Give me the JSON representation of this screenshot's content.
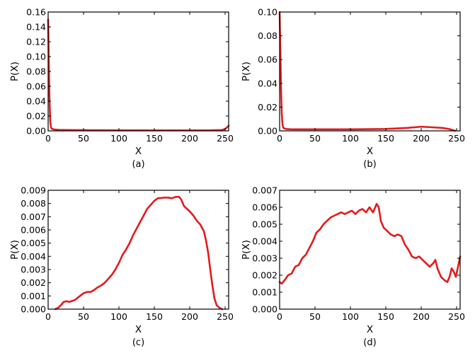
{
  "chart_data": [
    {
      "type": "line",
      "caption": "(a)",
      "xlabel": "X",
      "ylabel": "P(X)",
      "xlim": [
        0,
        255
      ],
      "ylim": [
        0,
        0.16
      ],
      "xticks": [
        0,
        50,
        100,
        150,
        200,
        250
      ],
      "xtick_labels": [
        "0",
        "50",
        "100",
        "150",
        "200",
        "250"
      ],
      "yticks": [
        0,
        0.02,
        0.04,
        0.06,
        0.08,
        0.1,
        0.12,
        0.14,
        0.16
      ],
      "ytick_labels": [
        "0.00",
        "0.02",
        "0.04",
        "0.06",
        "0.08",
        "0.10",
        "0.12",
        "0.14",
        "0.16"
      ],
      "color": "#e31a1c",
      "series": [
        {
          "x": [
            0,
            1,
            2,
            3,
            4,
            5,
            7,
            10,
            15,
            30,
            50,
            100,
            150,
            200,
            230,
            245,
            250,
            253,
            255
          ],
          "y": [
            0.15,
            0.09,
            0.04,
            0.012,
            0.005,
            0.003,
            0.0022,
            0.0018,
            0.0014,
            0.0012,
            0.001,
            0.0008,
            0.0007,
            0.0007,
            0.0008,
            0.0012,
            0.0025,
            0.005,
            0.007
          ]
        }
      ]
    },
    {
      "type": "line",
      "caption": "(b)",
      "xlabel": "X",
      "ylabel": "P(X)",
      "xlim": [
        0,
        255
      ],
      "ylim": [
        0,
        0.1
      ],
      "xticks": [
        0,
        50,
        100,
        150,
        200,
        250
      ],
      "xtick_labels": [
        "0",
        "50",
        "100",
        "150",
        "200",
        "250"
      ],
      "yticks": [
        0,
        0.02,
        0.04,
        0.06,
        0.08,
        0.1
      ],
      "ytick_labels": [
        "0.00",
        "0.02",
        "0.04",
        "0.06",
        "0.08",
        "0.10"
      ],
      "color": "#e31a1c",
      "series": [
        {
          "x": [
            0,
            1,
            2,
            3,
            4,
            5,
            6,
            8,
            10,
            15,
            30,
            50,
            100,
            150,
            180,
            200,
            210,
            230,
            240,
            245,
            248
          ],
          "y": [
            0.1,
            0.07,
            0.035,
            0.015,
            0.006,
            0.003,
            0.0022,
            0.0018,
            0.0015,
            0.0014,
            0.0013,
            0.0013,
            0.0013,
            0.0016,
            0.0025,
            0.0035,
            0.0032,
            0.0025,
            0.0015,
            0.0006,
            0.0001
          ]
        }
      ]
    },
    {
      "type": "line",
      "caption": "(c)",
      "xlabel": "X",
      "ylabel": "P(X)",
      "xlim": [
        0,
        255
      ],
      "ylim": [
        0,
        0.009
      ],
      "xticks": [
        0,
        50,
        100,
        150,
        200,
        250
      ],
      "xtick_labels": [
        "0",
        "50",
        "100",
        "150",
        "200",
        "250"
      ],
      "yticks": [
        0,
        0.001,
        0.002,
        0.003,
        0.004,
        0.005,
        0.006,
        0.007,
        0.008,
        0.009
      ],
      "ytick_labels": [
        "0.000",
        "0.001",
        "0.002",
        "0.003",
        "0.004",
        "0.005",
        "0.006",
        "0.007",
        "0.008",
        "0.009"
      ],
      "color": "#e31a1c",
      "series": [
        {
          "x": [
            10,
            14,
            18,
            22,
            26,
            30,
            38,
            45,
            50,
            55,
            60,
            65,
            70,
            75,
            80,
            85,
            90,
            95,
            100,
            105,
            110,
            115,
            120,
            125,
            130,
            135,
            140,
            145,
            150,
            155,
            160,
            165,
            170,
            175,
            180,
            185,
            188,
            192,
            196,
            200,
            205,
            210,
            215,
            220,
            223,
            226,
            229,
            232,
            235,
            238,
            242,
            246
          ],
          "y": [
            0,
            0.0001,
            0.0003,
            0.00055,
            0.0006,
            0.00055,
            0.0007,
            0.001,
            0.0012,
            0.0013,
            0.0013,
            0.00145,
            0.00165,
            0.0018,
            0.002,
            0.0023,
            0.0026,
            0.003,
            0.0035,
            0.0041,
            0.0045,
            0.005,
            0.0056,
            0.0061,
            0.0066,
            0.0071,
            0.0076,
            0.0079,
            0.0082,
            0.0084,
            0.00842,
            0.00845,
            0.00844,
            0.0084,
            0.0085,
            0.0085,
            0.0083,
            0.0078,
            0.0076,
            0.0074,
            0.0071,
            0.0067,
            0.0064,
            0.0059,
            0.0052,
            0.0043,
            0.003,
            0.0018,
            0.0008,
            0.0003,
            0.0001,
            0
          ]
        }
      ]
    },
    {
      "type": "line",
      "caption": "(d)",
      "xlabel": "X",
      "ylabel": "P(X)",
      "xlim": [
        0,
        255
      ],
      "ylim": [
        0,
        0.007
      ],
      "xticks": [
        0,
        50,
        100,
        150,
        200,
        250
      ],
      "xtick_labels": [
        "0",
        "50",
        "100",
        "150",
        "200",
        "250"
      ],
      "yticks": [
        0,
        0.001,
        0.002,
        0.003,
        0.004,
        0.005,
        0.006,
        0.007
      ],
      "ytick_labels": [
        "0.000",
        "0.001",
        "0.002",
        "0.003",
        "0.004",
        "0.005",
        "0.006",
        "0.007"
      ],
      "color": "#e31a1c",
      "series": [
        {
          "x": [
            0,
            3,
            7,
            12,
            17,
            22,
            27,
            32,
            37,
            42,
            47,
            52,
            57,
            62,
            67,
            72,
            77,
            82,
            87,
            92,
            97,
            102,
            107,
            112,
            117,
            122,
            127,
            132,
            137,
            140,
            143,
            147,
            152,
            157,
            162,
            167,
            172,
            177,
            182,
            187,
            192,
            197,
            202,
            207,
            212,
            217,
            220,
            223,
            228,
            233,
            237,
            240,
            243,
            246,
            249,
            252,
            255
          ],
          "y": [
            0.0016,
            0.0015,
            0.0017,
            0.002,
            0.0021,
            0.0025,
            0.0026,
            0.003,
            0.0032,
            0.0036,
            0.004,
            0.0045,
            0.0047,
            0.005,
            0.0052,
            0.0054,
            0.0055,
            0.0056,
            0.0057,
            0.0056,
            0.0057,
            0.0058,
            0.0056,
            0.0058,
            0.0059,
            0.0057,
            0.006,
            0.0057,
            0.0062,
            0.006,
            0.0052,
            0.0048,
            0.0046,
            0.0044,
            0.0043,
            0.0044,
            0.0043,
            0.0038,
            0.0035,
            0.0031,
            0.003,
            0.0031,
            0.0029,
            0.0027,
            0.0025,
            0.0027,
            0.0029,
            0.0024,
            0.0019,
            0.0017,
            0.0016,
            0.0019,
            0.0024,
            0.0022,
            0.0019,
            0.0025,
            0.0031
          ]
        }
      ]
    }
  ]
}
